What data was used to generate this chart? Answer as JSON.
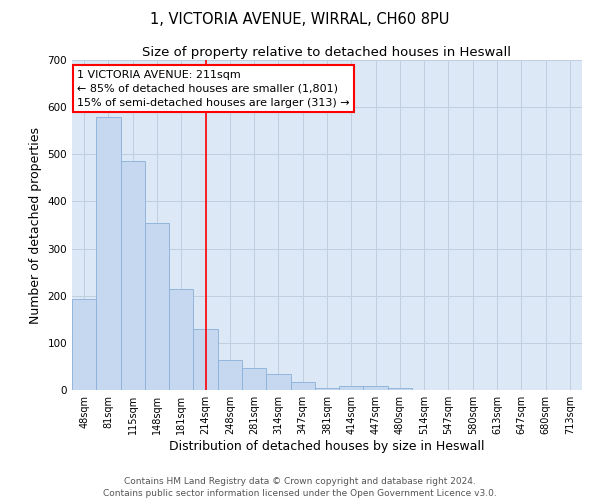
{
  "title": "1, VICTORIA AVENUE, WIRRAL, CH60 8PU",
  "subtitle": "Size of property relative to detached houses in Heswall",
  "xlabel": "Distribution of detached houses by size in Heswall",
  "ylabel": "Number of detached properties",
  "categories": [
    "48sqm",
    "81sqm",
    "115sqm",
    "148sqm",
    "181sqm",
    "214sqm",
    "248sqm",
    "281sqm",
    "314sqm",
    "347sqm",
    "381sqm",
    "414sqm",
    "447sqm",
    "480sqm",
    "514sqm",
    "547sqm",
    "580sqm",
    "613sqm",
    "647sqm",
    "680sqm",
    "713sqm"
  ],
  "values": [
    193,
    580,
    485,
    355,
    215,
    130,
    63,
    47,
    35,
    17,
    5,
    9,
    9,
    5,
    0,
    0,
    0,
    0,
    0,
    0,
    0
  ],
  "bar_color": "#c5d8f0",
  "bar_edge_color": "#7aaben",
  "grid_color": "#c0cfe0",
  "background_color": "#dce8f5",
  "property_line_index": 5,
  "annotation_text_line1": "1 VICTORIA AVENUE: 211sqm",
  "annotation_text_line2": "← 85% of detached houses are smaller (1,801)",
  "annotation_text_line3": "15% of semi-detached houses are larger (313) →",
  "ylim": [
    0,
    700
  ],
  "yticks": [
    0,
    100,
    200,
    300,
    400,
    500,
    600,
    700
  ],
  "footer_line1": "Contains HM Land Registry data © Crown copyright and database right 2024.",
  "footer_line2": "Contains public sector information licensed under the Open Government Licence v3.0.",
  "title_fontsize": 10.5,
  "subtitle_fontsize": 9.5,
  "axis_label_fontsize": 9,
  "tick_fontsize": 7,
  "annotation_fontsize": 8,
  "footer_fontsize": 6.5
}
